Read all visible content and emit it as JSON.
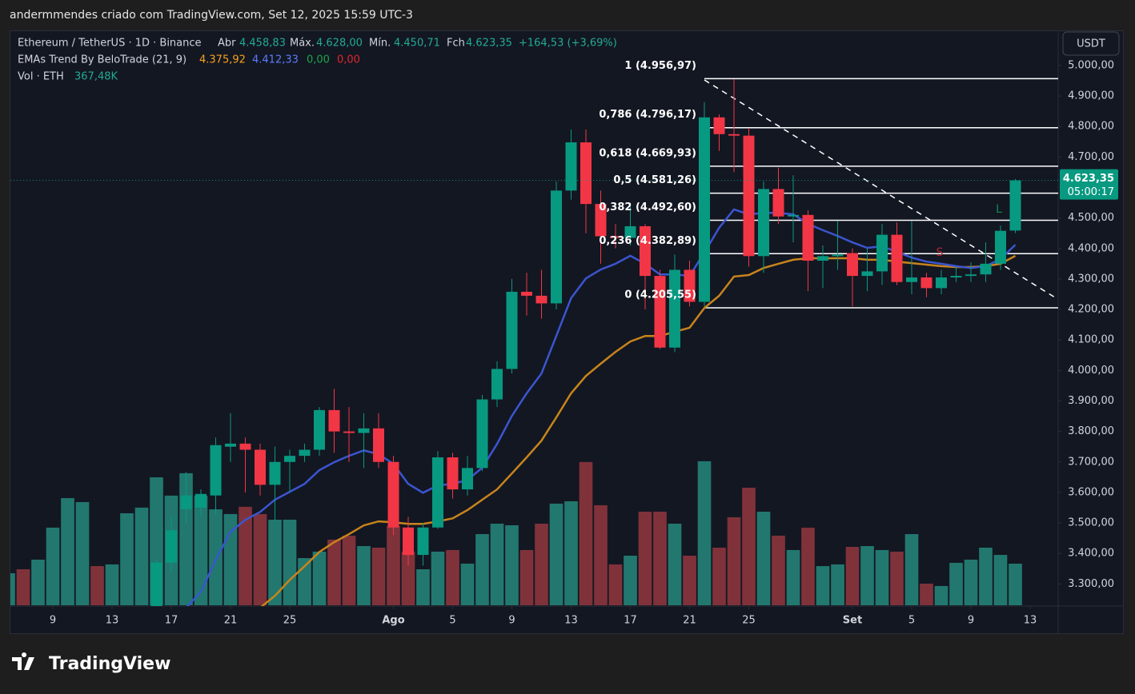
{
  "header": "andermmendes criado com TradingView.com, Set 12, 2025 15:59 UTC-3",
  "logo": "TradingView",
  "currency_button": "USDT",
  "chart_data": {
    "type": "candlestick",
    "legend": {
      "symbol": "Ethereum / TetherUS · 1D · Binance",
      "open_label": "Abr",
      "open": "4.458,83",
      "high_label": "Máx.",
      "high": "4.628,00",
      "low_label": "Mín.",
      "low": "4.450,71",
      "close_label": "Fch",
      "close": "4.623,35",
      "change": "+164,53 (+3,69%)",
      "indicator": "EMAs Trend By BeloTrade (21, 9)",
      "ema_values": [
        "4.375,92",
        "4.412,33",
        "0,00",
        "0,00"
      ],
      "volume": "Vol · ETH",
      "volume_value": "367,48K"
    },
    "x": [
      "2025-07-06",
      "2025-07-07",
      "2025-07-08",
      "2025-07-09",
      "2025-07-10",
      "2025-07-11",
      "2025-07-12",
      "2025-07-13",
      "2025-07-14",
      "2025-07-15",
      "2025-07-16",
      "2025-07-17",
      "2025-07-18",
      "2025-07-19",
      "2025-07-20",
      "2025-07-21",
      "2025-07-22",
      "2025-07-23",
      "2025-07-24",
      "2025-07-25",
      "2025-07-26",
      "2025-07-27",
      "2025-07-28",
      "2025-07-29",
      "2025-07-30",
      "2025-07-31",
      "2025-08-01",
      "2025-08-02",
      "2025-08-03",
      "2025-08-04",
      "2025-08-05",
      "2025-08-06",
      "2025-08-07",
      "2025-08-08",
      "2025-08-09",
      "2025-08-10",
      "2025-08-11",
      "2025-08-12",
      "2025-08-13",
      "2025-08-14",
      "2025-08-15",
      "2025-08-16",
      "2025-08-17",
      "2025-08-18",
      "2025-08-19",
      "2025-08-20",
      "2025-08-21",
      "2025-08-22",
      "2025-08-23",
      "2025-08-24",
      "2025-08-25",
      "2025-08-26",
      "2025-08-27",
      "2025-08-28",
      "2025-08-29",
      "2025-08-30",
      "2025-08-31",
      "2025-09-01",
      "2025-09-02",
      "2025-09-03",
      "2025-09-04",
      "2025-09-05",
      "2025-09-06",
      "2025-09-07",
      "2025-09-08",
      "2025-09-09",
      "2025-09-10",
      "2025-09-11",
      "2025-09-12"
    ],
    "open": [
      null,
      null,
      null,
      null,
      null,
      null,
      null,
      null,
      null,
      null,
      3200,
      3370,
      3545,
      3550,
      3590,
      3750,
      3760,
      3740,
      3625,
      3700,
      3720,
      3740,
      3870,
      3800,
      3795,
      3810,
      3700,
      3485,
      3395,
      3485,
      3715,
      3610,
      3680,
      3905,
      4005,
      4258,
      4245,
      4220,
      4590,
      4748,
      4546,
      4440,
      4435,
      4473,
      4310,
      4075,
      4330,
      4225,
      4830,
      4775,
      4770,
      4375,
      4595,
      4505,
      4510,
      4360,
      4375,
      4385,
      4310,
      4325,
      4445,
      4290,
      4305,
      4270,
      4305,
      4310,
      4315,
      4350,
      4458.83
    ],
    "high": [
      null,
      null,
      null,
      null,
      null,
      null,
      null,
      null,
      null,
      null,
      3380,
      3520,
      3667,
      3610,
      3780,
      3860,
      3780,
      3760,
      3750,
      3740,
      3760,
      3880,
      3940,
      3880,
      3860,
      3860,
      3720,
      3520,
      3500,
      3735,
      3730,
      3720,
      3920,
      4030,
      4300,
      4320,
      4330,
      4620,
      4790,
      4790,
      4590,
      4480,
      4550,
      4480,
      4330,
      4380,
      4360,
      4880,
      4840,
      4955,
      4795,
      4620,
      4665,
      4640,
      4525,
      4410,
      4490,
      4400,
      4400,
      4480,
      4485,
      4490,
      4320,
      4330,
      4340,
      4355,
      4420,
      4475,
      4628
    ],
    "low": [
      null,
      null,
      null,
      null,
      null,
      null,
      null,
      null,
      null,
      null,
      3150,
      3340,
      3500,
      3520,
      3530,
      3700,
      3600,
      3590,
      3510,
      3600,
      3700,
      3720,
      3730,
      3700,
      3680,
      3680,
      3460,
      3360,
      3360,
      3480,
      3580,
      3590,
      3670,
      3880,
      3990,
      4180,
      4170,
      4200,
      4560,
      4450,
      4350,
      4400,
      4410,
      4200,
      4070,
      4060,
      4210,
      4210,
      4720,
      4650,
      4340,
      4320,
      4480,
      4420,
      4260,
      4270,
      4330,
      4210,
      4260,
      4280,
      4280,
      4250,
      4240,
      4250,
      4290,
      4290,
      4290,
      4330,
      4450.71
    ],
    "close": [
      null,
      null,
      null,
      null,
      null,
      null,
      null,
      null,
      null,
      null,
      3370,
      3476,
      3590,
      3595,
      3755,
      3760,
      3740,
      3625,
      3700,
      3720,
      3740,
      3870,
      3800,
      3795,
      3810,
      3700,
      3485,
      3395,
      3485,
      3715,
      3610,
      3680,
      3905,
      4005,
      4258,
      4245,
      4220,
      4590,
      4748,
      4546,
      4440,
      4435,
      4473,
      4310,
      4075,
      4330,
      4225,
      4830,
      4775,
      4770,
      4375,
      4595,
      4505,
      4510,
      4360,
      4375,
      4380,
      4310,
      4325,
      4445,
      4290,
      4305,
      4270,
      4305,
      4310,
      4315,
      4350,
      4458,
      4623.35
    ],
    "up_color": "#089981",
    "down_color": "#f23645",
    "volume": {
      "values": [
        283,
        318,
        403,
        686,
        947,
        912,
        346,
        361,
        813,
        863,
        1131,
        969,
        1167,
        969,
        848,
        806,
        870,
        806,
        756,
        756,
        417,
        474,
        580,
        615,
        523,
        509,
        700,
        474,
        318,
        474,
        488,
        368,
        629,
        721,
        707,
        488,
        721,
        898,
        919,
        1266,
        884,
        361,
        438,
        827,
        827,
        721,
        438,
        1273,
        509,
        778,
        1039,
        827,
        615,
        488,
        686,
        346,
        361,
        516,
        523,
        488,
        474,
        629,
        191,
        170,
        375,
        403,
        509,
        445,
        367.48
      ],
      "colors": [
        "#22786f",
        "#80323a",
        "#22786f",
        "#22786f",
        "#22786f",
        "#22786f",
        "#80323a",
        "#22786f",
        "#22786f",
        "#22786f",
        "#22786f",
        "#22786f",
        "#22786f",
        "#22786f",
        "#22786f",
        "#22786f",
        "#80323a",
        "#80323a",
        "#22786f",
        "#22786f",
        "#22786f",
        "#22786f",
        "#80323a",
        "#80323a",
        "#22786f",
        "#80323a",
        "#80323a",
        "#80323a",
        "#22786f",
        "#22786f",
        "#80323a",
        "#22786f",
        "#22786f",
        "#22786f",
        "#22786f",
        "#80323a",
        "#80323a",
        "#22786f",
        "#22786f",
        "#80323a",
        "#80323a",
        "#80323a",
        "#22786f",
        "#80323a",
        "#80323a",
        "#22786f",
        "#80323a",
        "#22786f",
        "#80323a",
        "#80323a",
        "#80323a",
        "#22786f",
        "#80323a",
        "#22786f",
        "#80323a",
        "#22786f",
        "#22786f",
        "#80323a",
        "#22786f",
        "#22786f",
        "#80323a",
        "#22786f",
        "#80323a",
        "#22786f",
        "#22786f",
        "#22786f",
        "#22786f",
        "#22786f",
        "#22786f"
      ]
    },
    "lines": [
      {
        "color": "#c8841c",
        "values": [
          null,
          null,
          null,
          null,
          null,
          null,
          null,
          null,
          null,
          null,
          null,
          null,
          null,
          null,
          null,
          null,
          null,
          3222,
          3261,
          3313,
          3358,
          3405,
          3437,
          3463,
          3492,
          3505,
          3502,
          3497,
          3497,
          3505,
          3515,
          3542,
          3576,
          3610,
          3662,
          3715,
          3770,
          3846,
          3925,
          3982,
          4022,
          4061,
          4095,
          4113,
          4113,
          4127,
          4140,
          4205,
          4245,
          4308,
          4313,
          4336,
          4350,
          4363,
          4368,
          4368,
          4368,
          4368,
          4363,
          4363,
          4357,
          4352,
          4347,
          4342,
          4339,
          4339,
          4342,
          4350,
          4375.92
        ]
      },
      {
        "color": "#3b55d0",
        "values": [
          null,
          null,
          null,
          null,
          null,
          null,
          null,
          null,
          null,
          null,
          null,
          null,
          3222,
          3274,
          3379,
          3471,
          3510,
          3536,
          3576,
          3602,
          3628,
          3673,
          3699,
          3720,
          3738,
          3725,
          3694,
          3628,
          3599,
          3623,
          3628,
          3641,
          3681,
          3759,
          3851,
          3925,
          3990,
          4113,
          4237,
          4302,
          4331,
          4350,
          4376,
          4350,
          4315,
          4315,
          4310,
          4386,
          4468,
          4528,
          4512,
          4517,
          4517,
          4512,
          4481,
          4460,
          4441,
          4420,
          4402,
          4407,
          4389,
          4370,
          4357,
          4350,
          4342,
          4336,
          4342,
          4365,
          4412.33
        ]
      }
    ],
    "fib_levels": [
      {
        "label": "1 (4.956,97)",
        "value": 4956.97
      },
      {
        "label": "0,786 (4.796,17)",
        "value": 4796.17
      },
      {
        "label": "0,618 (4.669,93)",
        "value": 4669.93
      },
      {
        "label": "0,5 (4.581,26)",
        "value": 4581.26
      },
      {
        "label": "0,382 (4.492,60)",
        "value": 4492.6
      },
      {
        "label": "0,236 (4.382,89)",
        "value": 4382.89
      },
      {
        "label": "0 (4.205,55)",
        "value": 4205.55
      }
    ],
    "fib_color": "#ffffff",
    "annotations": [
      {
        "text": "S",
        "color": "#b22833"
      },
      {
        "text": "L",
        "color": "#138a4f"
      }
    ],
    "last_price_label": "4.623,35",
    "countdown": "05:00:17",
    "xlim": [
      "2025-07-06",
      "2025-09-15"
    ],
    "xticks": [
      {
        "value": "2025-07-09",
        "label": "9"
      },
      {
        "value": "2025-07-13",
        "label": "13"
      },
      {
        "value": "2025-07-17",
        "label": "17"
      },
      {
        "value": "2025-07-21",
        "label": "21"
      },
      {
        "value": "2025-07-25",
        "label": "25"
      },
      {
        "value": "2025-08-01",
        "label": "Ago"
      },
      {
        "value": "2025-08-05",
        "label": "5"
      },
      {
        "value": "2025-08-09",
        "label": "9"
      },
      {
        "value": "2025-08-13",
        "label": "13"
      },
      {
        "value": "2025-08-17",
        "label": "17"
      },
      {
        "value": "2025-08-21",
        "label": "21"
      },
      {
        "value": "2025-08-25",
        "label": "25"
      },
      {
        "value": "2025-09-01",
        "label": "Set"
      },
      {
        "value": "2025-09-05",
        "label": "5"
      },
      {
        "value": "2025-09-09",
        "label": "9"
      },
      {
        "value": "2025-09-13",
        "label": "13"
      }
    ],
    "ylim": [
      3230,
      5110
    ],
    "yticks": [
      {
        "value": 3300,
        "label": "3.300,00"
      },
      {
        "value": 3400,
        "label": "3.400,00"
      },
      {
        "value": 3500,
        "label": "3.500,00"
      },
      {
        "value": 3600,
        "label": "3.600,00"
      },
      {
        "value": 3700,
        "label": "3.700,00"
      },
      {
        "value": 3800,
        "label": "3.800,00"
      },
      {
        "value": 3900,
        "label": "3.900,00"
      },
      {
        "value": 4000,
        "label": "4.000,00"
      },
      {
        "value": 4100,
        "label": "4.100,00"
      },
      {
        "value": 4200,
        "label": "4.200,00"
      },
      {
        "value": 4300,
        "label": "4.300,00"
      },
      {
        "value": 4400,
        "label": "4.400,00"
      },
      {
        "value": 4500,
        "label": "4.500,00"
      },
      {
        "value": 4600,
        "label": "4.600,00"
      },
      {
        "value": 4700,
        "label": "4.700,00"
      },
      {
        "value": 4800,
        "label": "4.800,00"
      },
      {
        "value": 4900,
        "label": "4.900,00"
      },
      {
        "value": 5000,
        "label": "5.000,00"
      }
    ],
    "grid": false
  }
}
